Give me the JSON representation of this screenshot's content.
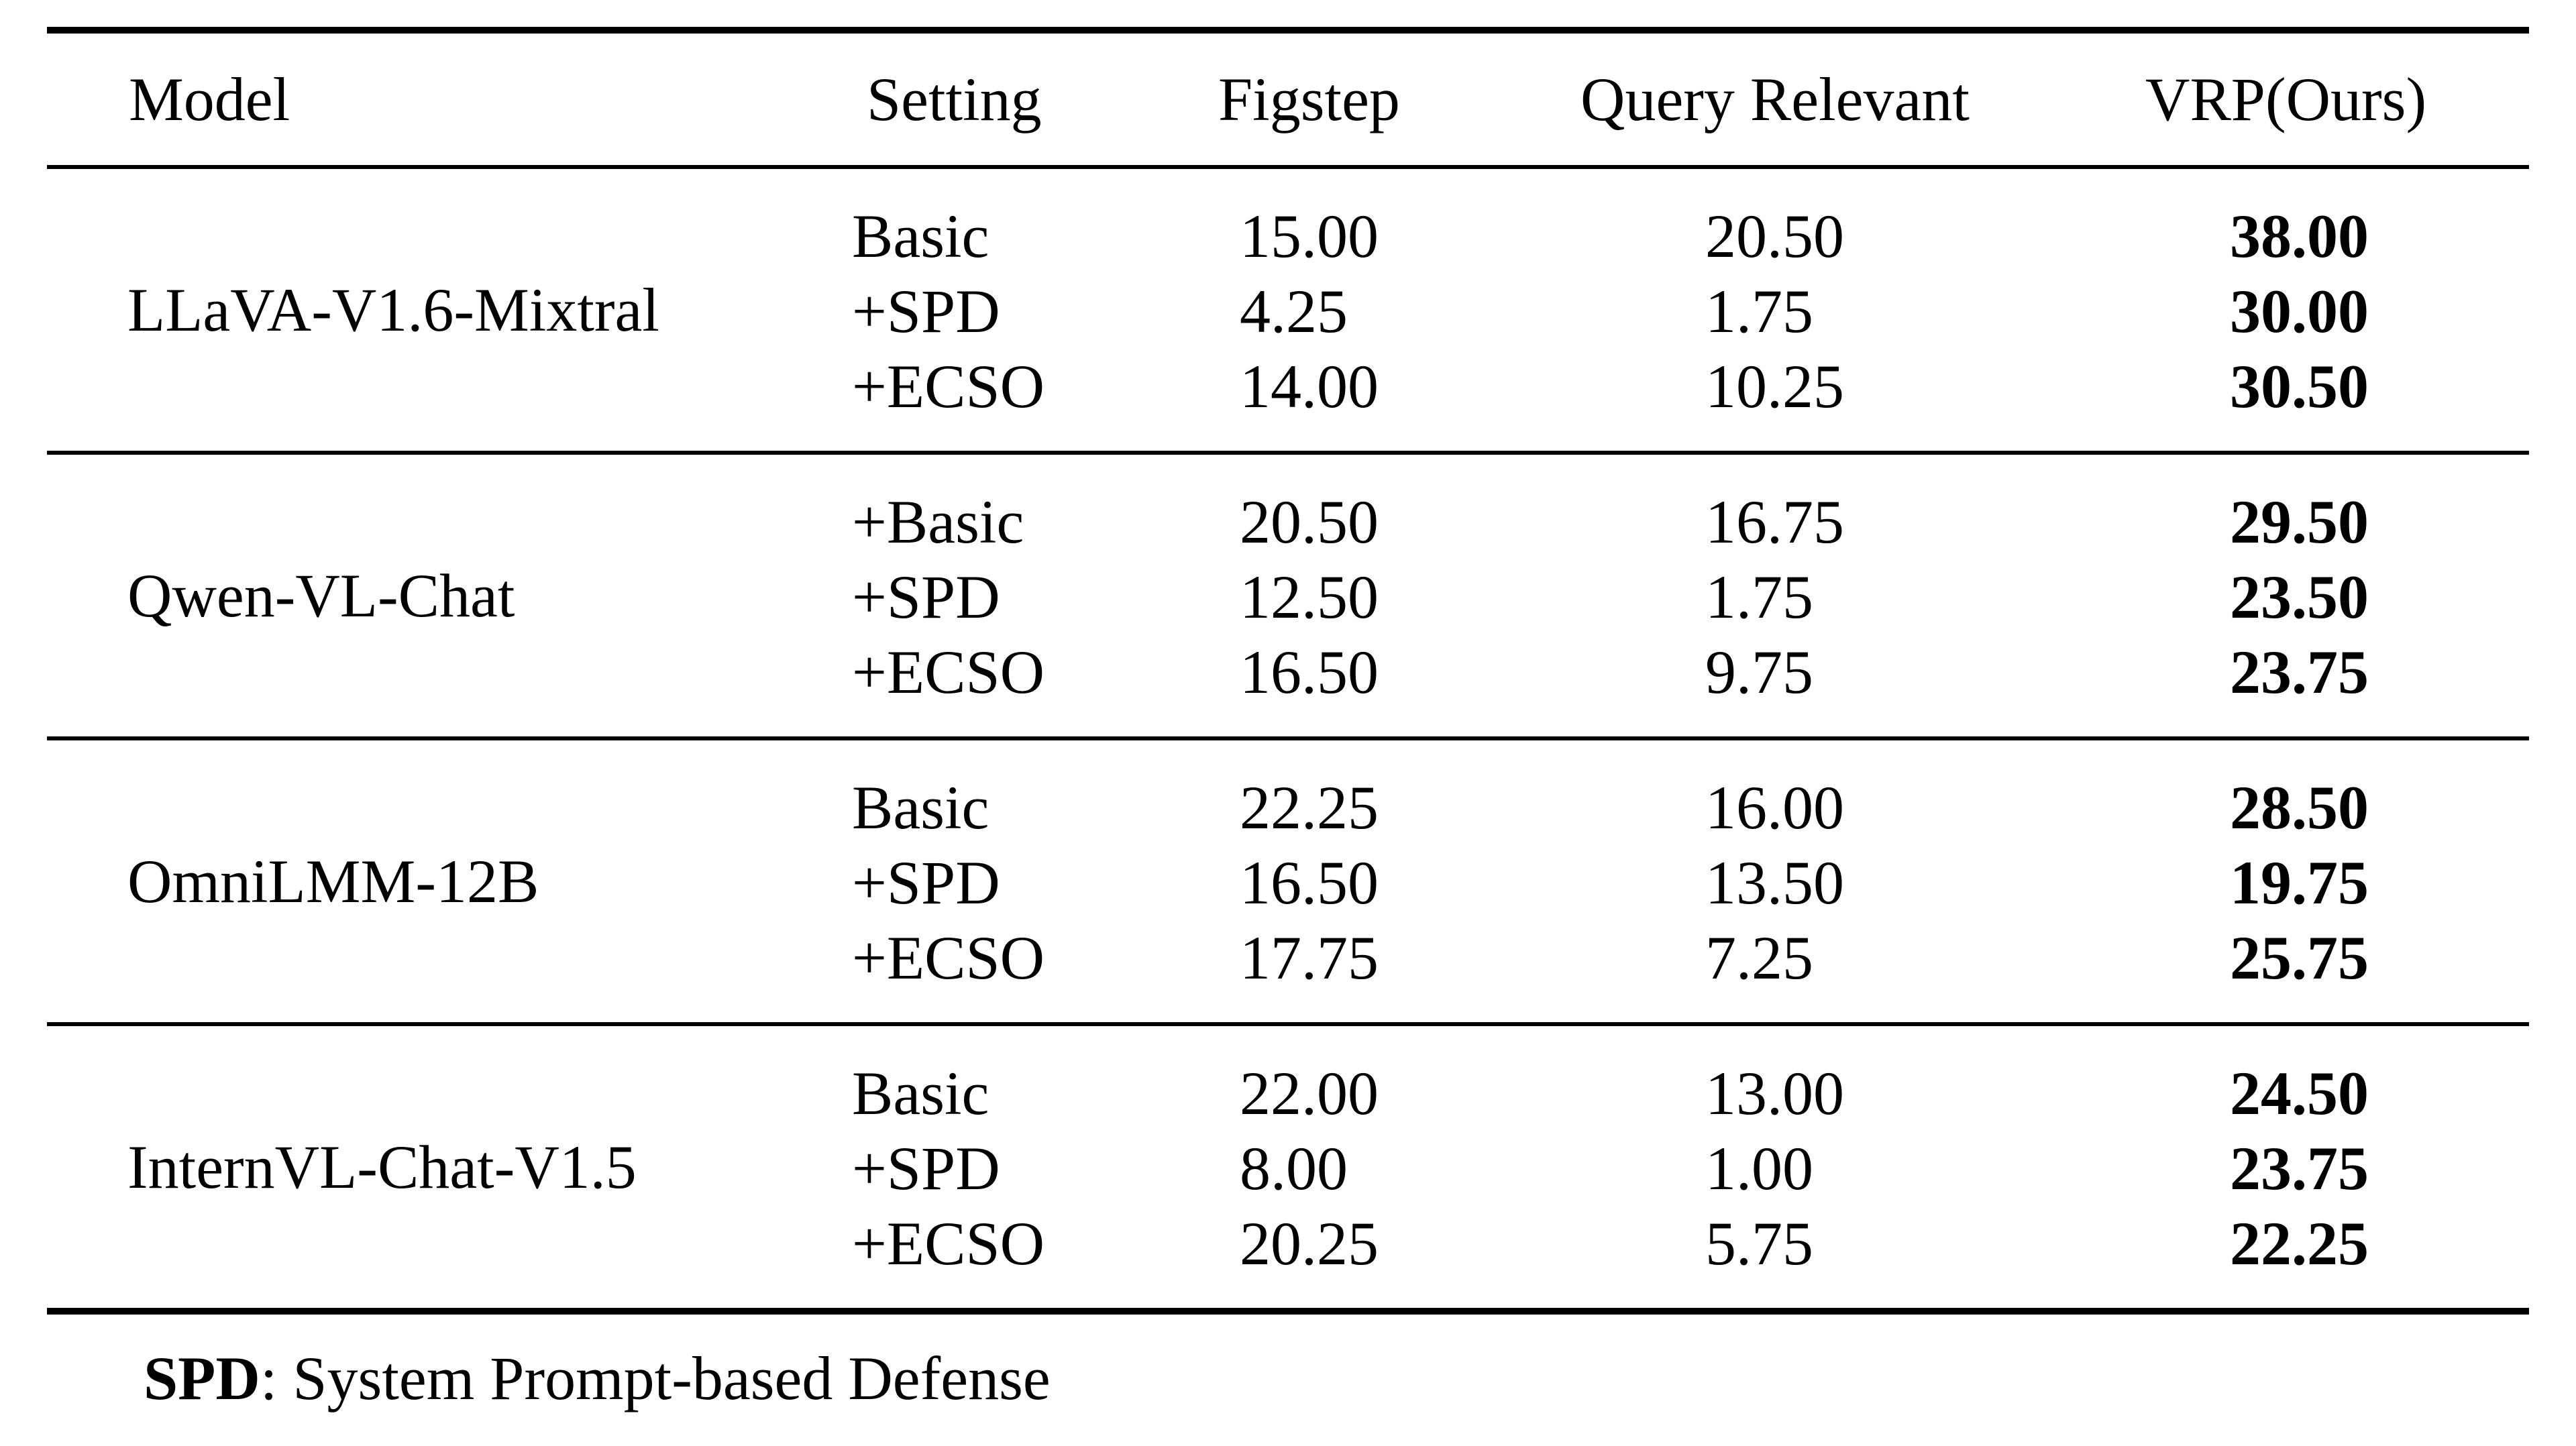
{
  "headers": {
    "model": "Model",
    "setting": "Setting",
    "figstep": "Figstep",
    "query_relevant": "Query Relevant",
    "vrp": "VRP(Ours)"
  },
  "groups": [
    {
      "model": "LLaVA-V1.6-Mixtral",
      "rows": [
        {
          "setting": "Basic",
          "figstep": "15.00",
          "query": "20.50",
          "vrp": "38.00"
        },
        {
          "setting": "+SPD",
          "figstep": "4.25",
          "query": "1.75",
          "vrp": "30.00"
        },
        {
          "setting": "+ECSO",
          "figstep": "14.00",
          "query": "10.25",
          "vrp": "30.50"
        }
      ]
    },
    {
      "model": "Qwen-VL-Chat",
      "rows": [
        {
          "setting": "+Basic",
          "figstep": "20.50",
          "query": "16.75",
          "vrp": "29.50"
        },
        {
          "setting": "+SPD",
          "figstep": "12.50",
          "query": "1.75",
          "vrp": "23.50"
        },
        {
          "setting": "+ECSO",
          "figstep": "16.50",
          "query": "9.75",
          "vrp": "23.75"
        }
      ]
    },
    {
      "model": "OmniLMM-12B",
      "rows": [
        {
          "setting": "Basic",
          "figstep": "22.25",
          "query": "16.00",
          "vrp": "28.50"
        },
        {
          "setting": "+SPD",
          "figstep": "16.50",
          "query": "13.50",
          "vrp": "19.75"
        },
        {
          "setting": "+ECSO",
          "figstep": "17.75",
          "query": "7.25",
          "vrp": "25.75"
        }
      ]
    },
    {
      "model": "InternVL-Chat-V1.5",
      "rows": [
        {
          "setting": "Basic",
          "figstep": "22.00",
          "query": "13.00",
          "vrp": "24.50"
        },
        {
          "setting": "+SPD",
          "figstep": "8.00",
          "query": "1.00",
          "vrp": "23.75"
        },
        {
          "setting": "+ECSO",
          "figstep": "20.25",
          "query": "5.75",
          "vrp": "22.25"
        }
      ]
    }
  ],
  "footnote": {
    "term": "SPD",
    "definition": ": System Prompt-based Defense"
  }
}
